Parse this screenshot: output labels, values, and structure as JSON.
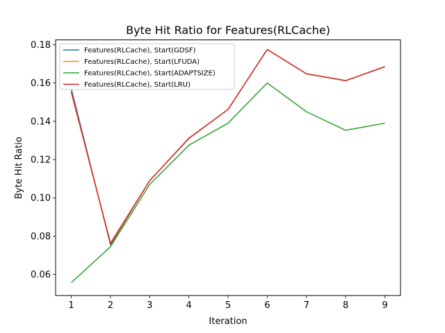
{
  "chart_data": {
    "type": "line",
    "title": "Byte Hit Ratio for Features(RLCache)",
    "xlabel": "Iteration",
    "ylabel": "Byte Hit Ratio",
    "x": [
      1,
      2,
      3,
      4,
      5,
      6,
      7,
      8,
      9
    ],
    "xlim": [
      0.6,
      9.4
    ],
    "ylim": [
      0.049,
      0.1825
    ],
    "xticks": [
      1,
      2,
      3,
      4,
      5,
      6,
      7,
      8,
      9
    ],
    "yticks": [
      0.06,
      0.08,
      0.1,
      0.12,
      0.14,
      0.16,
      0.18
    ],
    "ytick_labels": [
      "0.06",
      "0.08",
      "0.10",
      "0.12",
      "0.14",
      "0.16",
      "0.18"
    ],
    "grid": false,
    "legend_position": "top-left",
    "series": [
      {
        "name": "Features(RLCache), Start(GDSF)",
        "color": "#1f77b4",
        "values": [
          0.157,
          0.0755,
          0.109,
          0.131,
          0.1462,
          0.1775,
          0.1648,
          0.1612,
          0.1685
        ]
      },
      {
        "name": "Features(RLCache), Start(LFUDA)",
        "color": "#ff7f0e",
        "values": [
          0.155,
          0.0765,
          0.109,
          0.131,
          0.1462,
          0.1775,
          0.1648,
          0.1612,
          0.1685
        ]
      },
      {
        "name": "Features(RLCache), Start(ADAPTSIZE)",
        "color": "#2ca02c",
        "values": [
          0.0557,
          0.0745,
          0.107,
          0.1275,
          0.139,
          0.16,
          0.145,
          0.1353,
          0.139
        ]
      },
      {
        "name": "Features(RLCache), Start(LRU)",
        "color": "#d62728",
        "values": [
          0.1555,
          0.076,
          0.109,
          0.1312,
          0.1462,
          0.1775,
          0.1648,
          0.1612,
          0.1685
        ]
      }
    ]
  }
}
